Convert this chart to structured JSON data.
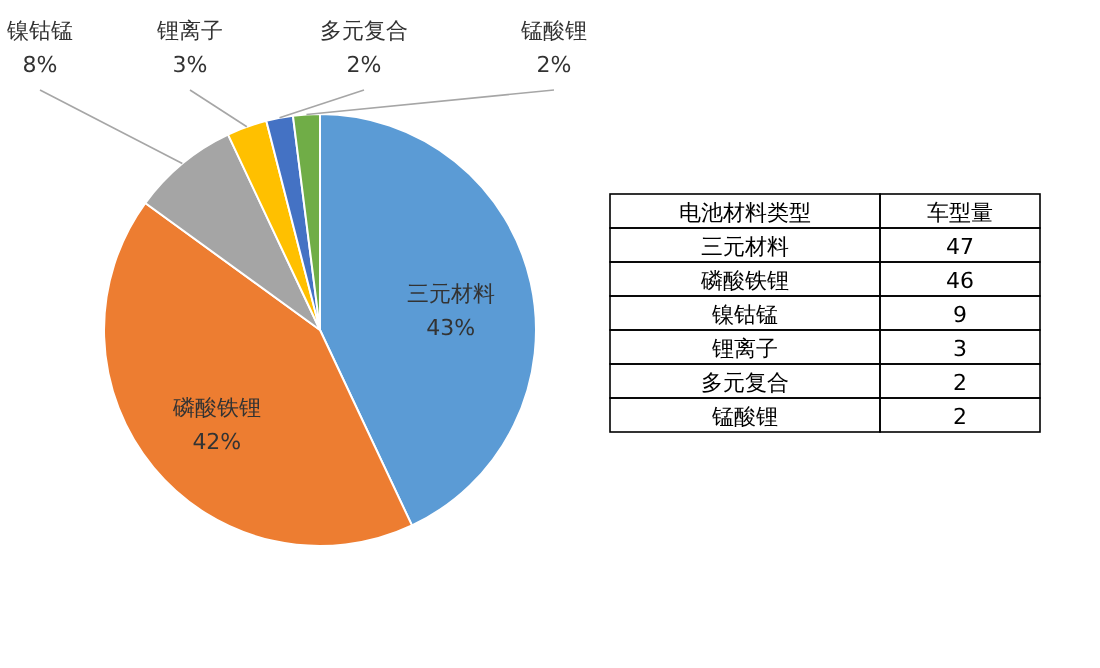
{
  "chart_data": {
    "type": "pie",
    "categories": [
      "三元材料",
      "磷酸铁锂",
      "镍钴锰",
      "锂离子",
      "多元复合",
      "锰酸锂"
    ],
    "values": [
      43,
      42,
      8,
      3,
      2,
      2
    ],
    "value_labels": [
      "43%",
      "42%",
      "8%",
      "3%",
      "2%",
      "2%"
    ],
    "colors": [
      "#5b9bd5",
      "#ed7d31",
      "#a5a5a5",
      "#ffc000",
      "#4472c4",
      "#70ad47"
    ],
    "annotations": [
      "电池材料类型",
      "车型量",
      "47",
      "46",
      "9",
      "3",
      "2",
      "2"
    ]
  }
}
